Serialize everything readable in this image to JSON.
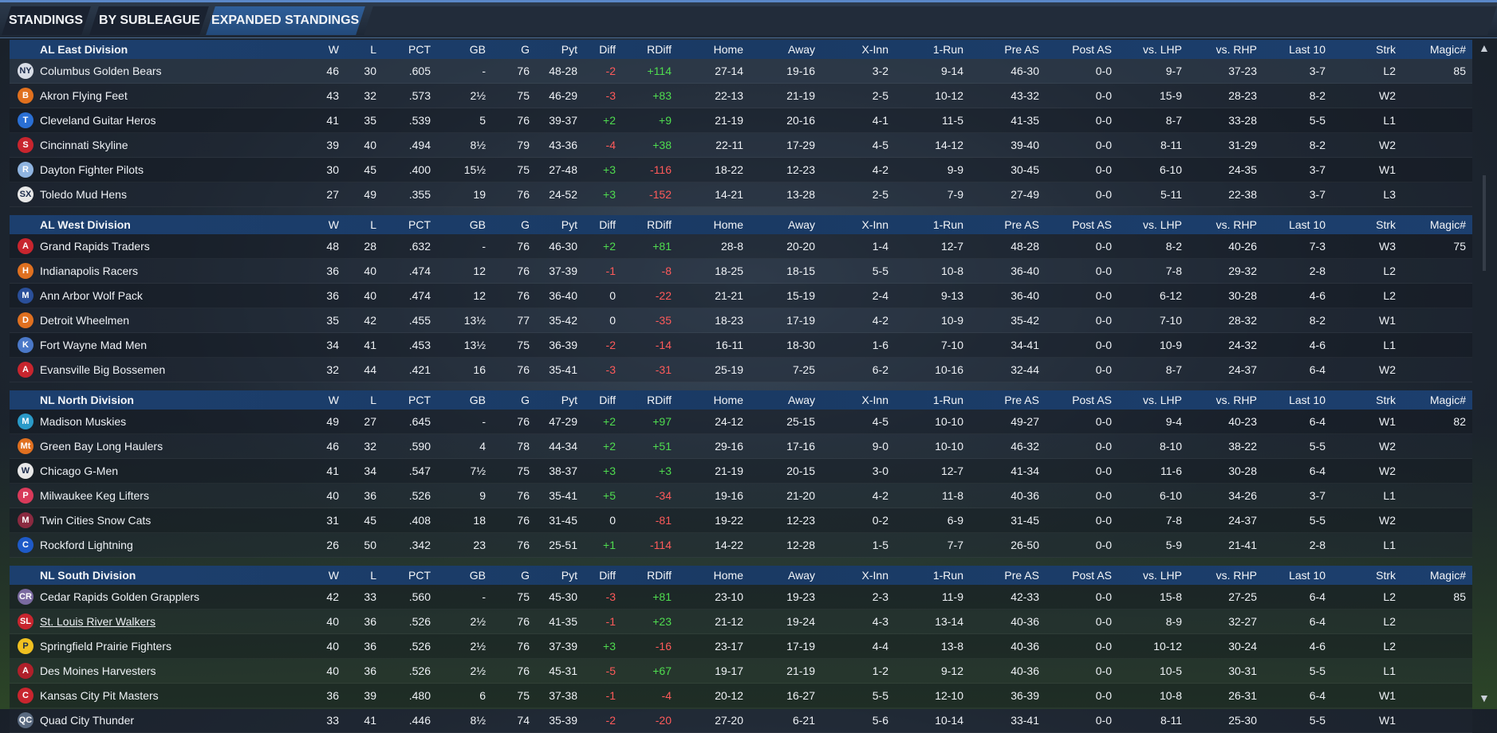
{
  "tabs": [
    {
      "label": "STANDINGS"
    },
    {
      "label": "BY SUBLEAGUE"
    },
    {
      "label": "EXPANDED STANDINGS"
    }
  ],
  "columns": [
    "W",
    "L",
    "PCT",
    "GB",
    "G",
    "Pyt",
    "Diff",
    "RDiff",
    "Home",
    "Away",
    "X-Inn",
    "1-Run",
    "Pre AS",
    "Post AS",
    "vs. LHP",
    "vs. RHP",
    "Last 10",
    "Strk",
    "Magic#"
  ],
  "divisions": [
    {
      "name": "AL East Division",
      "teams": [
        {
          "name": "Columbus Golden Bears",
          "w": "46",
          "l": "30",
          "pct": ".605",
          "gb": "-",
          "g": "76",
          "pyt": "48-28",
          "diff": "-2",
          "rdiff": "+114",
          "home": "27-14",
          "away": "19-16",
          "xinn": "3-2",
          "onerun": "9-14",
          "preas": "46-30",
          "postas": "0-0",
          "lhp": "9-7",
          "rhp": "37-23",
          "last10": "3-7",
          "strk": "L2",
          "magic": "85",
          "logo_color": "#d8dde6",
          "logo_text": "NY"
        },
        {
          "name": "Akron  Flying Feet",
          "w": "43",
          "l": "32",
          "pct": ".573",
          "gb": "2½",
          "g": "75",
          "pyt": "46-29",
          "diff": "-3",
          "rdiff": "+83",
          "home": "22-13",
          "away": "21-19",
          "xinn": "2-5",
          "onerun": "10-12",
          "preas": "43-32",
          "postas": "0-0",
          "lhp": "15-9",
          "rhp": "28-23",
          "last10": "8-2",
          "strk": "W2",
          "magic": "",
          "logo_color": "#e0701e",
          "logo_text": "B"
        },
        {
          "name": "Cleveland Guitar Heros",
          "w": "41",
          "l": "35",
          "pct": ".539",
          "gb": "5",
          "g": "76",
          "pyt": "39-37",
          "diff": "+2",
          "rdiff": "+9",
          "home": "21-19",
          "away": "20-16",
          "xinn": "4-1",
          "onerun": "11-5",
          "preas": "41-35",
          "postas": "0-0",
          "lhp": "8-7",
          "rhp": "33-28",
          "last10": "5-5",
          "strk": "L1",
          "magic": "",
          "logo_color": "#2a6fd4",
          "logo_text": "T"
        },
        {
          "name": "Cincinnati Skyline",
          "w": "39",
          "l": "40",
          "pct": ".494",
          "gb": "8½",
          "g": "79",
          "pyt": "43-36",
          "diff": "-4",
          "rdiff": "+38",
          "home": "22-11",
          "away": "17-29",
          "xinn": "4-5",
          "onerun": "14-12",
          "preas": "39-40",
          "postas": "0-0",
          "lhp": "8-11",
          "rhp": "31-29",
          "last10": "8-2",
          "strk": "W2",
          "magic": "",
          "logo_color": "#c8252e",
          "logo_text": "S"
        },
        {
          "name": "Dayton Fighter Pilots",
          "w": "30",
          "l": "45",
          "pct": ".400",
          "gb": "15½",
          "g": "75",
          "pyt": "27-48",
          "diff": "+3",
          "rdiff": "-116",
          "home": "18-22",
          "away": "12-23",
          "xinn": "4-2",
          "onerun": "9-9",
          "preas": "30-45",
          "postas": "0-0",
          "lhp": "6-10",
          "rhp": "24-35",
          "last10": "3-7",
          "strk": "W1",
          "magic": "",
          "logo_color": "#8fb4e0",
          "logo_text": "R"
        },
        {
          "name": "Toledo  Mud Hens",
          "w": "27",
          "l": "49",
          "pct": ".355",
          "gb": "19",
          "g": "76",
          "pyt": "24-52",
          "diff": "+3",
          "rdiff": "-152",
          "home": "14-21",
          "away": "13-28",
          "xinn": "2-5",
          "onerun": "7-9",
          "preas": "27-49",
          "postas": "0-0",
          "lhp": "5-11",
          "rhp": "22-38",
          "last10": "3-7",
          "strk": "L3",
          "magic": "",
          "logo_color": "#e8e8e8",
          "logo_text": "SX"
        }
      ]
    },
    {
      "name": "AL West Division",
      "teams": [
        {
          "name": "Grand Rapids Traders",
          "w": "48",
          "l": "28",
          "pct": ".632",
          "gb": "-",
          "g": "76",
          "pyt": "46-30",
          "diff": "+2",
          "rdiff": "+81",
          "home": "28-8",
          "away": "20-20",
          "xinn": "1-4",
          "onerun": "12-7",
          "preas": "48-28",
          "postas": "0-0",
          "lhp": "8-2",
          "rhp": "40-26",
          "last10": "7-3",
          "strk": "W3",
          "magic": "75",
          "logo_color": "#c8252e",
          "logo_text": "A"
        },
        {
          "name": "Indianapolis Racers",
          "w": "36",
          "l": "40",
          "pct": ".474",
          "gb": "12",
          "g": "76",
          "pyt": "37-39",
          "diff": "-1",
          "rdiff": "-8",
          "home": "18-25",
          "away": "18-15",
          "xinn": "5-5",
          "onerun": "10-8",
          "preas": "36-40",
          "postas": "0-0",
          "lhp": "7-8",
          "rhp": "29-32",
          "last10": "2-8",
          "strk": "L2",
          "magic": "",
          "logo_color": "#e07020",
          "logo_text": "H"
        },
        {
          "name": "Ann Arbor Wolf Pack",
          "w": "36",
          "l": "40",
          "pct": ".474",
          "gb": "12",
          "g": "76",
          "pyt": "36-40",
          "diff": "0",
          "rdiff": "-22",
          "home": "21-21",
          "away": "15-19",
          "xinn": "2-4",
          "onerun": "9-13",
          "preas": "36-40",
          "postas": "0-0",
          "lhp": "6-12",
          "rhp": "30-28",
          "last10": "4-6",
          "strk": "L2",
          "magic": "",
          "logo_color": "#2a4f9a",
          "logo_text": "M"
        },
        {
          "name": "Detroit Wheelmen",
          "w": "35",
          "l": "42",
          "pct": ".455",
          "gb": "13½",
          "g": "77",
          "pyt": "35-42",
          "diff": "0",
          "rdiff": "-35",
          "home": "18-23",
          "away": "17-19",
          "xinn": "4-2",
          "onerun": "10-9",
          "preas": "35-42",
          "postas": "0-0",
          "lhp": "7-10",
          "rhp": "28-32",
          "last10": "8-2",
          "strk": "W1",
          "magic": "",
          "logo_color": "#e07020",
          "logo_text": "D"
        },
        {
          "name": "Fort Wayne Mad Men",
          "w": "34",
          "l": "41",
          "pct": ".453",
          "gb": "13½",
          "g": "75",
          "pyt": "36-39",
          "diff": "-2",
          "rdiff": "-14",
          "home": "16-11",
          "away": "18-30",
          "xinn": "1-6",
          "onerun": "7-10",
          "preas": "34-41",
          "postas": "0-0",
          "lhp": "10-9",
          "rhp": "24-32",
          "last10": "4-6",
          "strk": "L1",
          "magic": "",
          "logo_color": "#4a78c8",
          "logo_text": "K"
        },
        {
          "name": "Evansville Big Bossemen",
          "w": "32",
          "l": "44",
          "pct": ".421",
          "gb": "16",
          "g": "76",
          "pyt": "35-41",
          "diff": "-3",
          "rdiff": "-31",
          "home": "25-19",
          "away": "7-25",
          "xinn": "6-2",
          "onerun": "10-16",
          "preas": "32-44",
          "postas": "0-0",
          "lhp": "8-7",
          "rhp": "24-37",
          "last10": "6-4",
          "strk": "W2",
          "magic": "",
          "logo_color": "#c8252e",
          "logo_text": "A"
        }
      ]
    },
    {
      "name": "NL North Division",
      "teams": [
        {
          "name": "Madison Muskies",
          "w": "49",
          "l": "27",
          "pct": ".645",
          "gb": "-",
          "g": "76",
          "pyt": "47-29",
          "diff": "+2",
          "rdiff": "+97",
          "home": "24-12",
          "away": "25-15",
          "xinn": "4-5",
          "onerun": "10-10",
          "preas": "49-27",
          "postas": "0-0",
          "lhp": "9-4",
          "rhp": "40-23",
          "last10": "6-4",
          "strk": "W1",
          "magic": "82",
          "logo_color": "#2a9ac8",
          "logo_text": "M"
        },
        {
          "name": "Green Bay  Long Haulers",
          "w": "46",
          "l": "32",
          "pct": ".590",
          "gb": "4",
          "g": "78",
          "pyt": "44-34",
          "diff": "+2",
          "rdiff": "+51",
          "home": "29-16",
          "away": "17-16",
          "xinn": "9-0",
          "onerun": "10-10",
          "preas": "46-32",
          "postas": "0-0",
          "lhp": "8-10",
          "rhp": "38-22",
          "last10": "5-5",
          "strk": "W2",
          "magic": "",
          "logo_color": "#e07020",
          "logo_text": "Mt"
        },
        {
          "name": "Chicago G-Men",
          "w": "41",
          "l": "34",
          "pct": ".547",
          "gb": "7½",
          "g": "75",
          "pyt": "38-37",
          "diff": "+3",
          "rdiff": "+3",
          "home": "21-19",
          "away": "20-15",
          "xinn": "3-0",
          "onerun": "12-7",
          "preas": "41-34",
          "postas": "0-0",
          "lhp": "11-6",
          "rhp": "30-28",
          "last10": "6-4",
          "strk": "W2",
          "magic": "",
          "logo_color": "#e8e8e8",
          "logo_text": "W"
        },
        {
          "name": "Milwaukee Keg Lifters",
          "w": "40",
          "l": "36",
          "pct": ".526",
          "gb": "9",
          "g": "76",
          "pyt": "35-41",
          "diff": "+5",
          "rdiff": "-34",
          "home": "19-16",
          "away": "21-20",
          "xinn": "4-2",
          "onerun": "11-8",
          "preas": "40-36",
          "postas": "0-0",
          "lhp": "6-10",
          "rhp": "34-26",
          "last10": "3-7",
          "strk": "L1",
          "magic": "",
          "logo_color": "#d83a5a",
          "logo_text": "P"
        },
        {
          "name": "Twin Cities Snow Cats",
          "w": "31",
          "l": "45",
          "pct": ".408",
          "gb": "18",
          "g": "76",
          "pyt": "31-45",
          "diff": "0",
          "rdiff": "-81",
          "home": "19-22",
          "away": "12-23",
          "xinn": "0-2",
          "onerun": "6-9",
          "preas": "31-45",
          "postas": "0-0",
          "lhp": "7-8",
          "rhp": "24-37",
          "last10": "5-5",
          "strk": "W2",
          "magic": "",
          "logo_color": "#8a2a40",
          "logo_text": "M"
        },
        {
          "name": "Rockford Lightning",
          "w": "26",
          "l": "50",
          "pct": ".342",
          "gb": "23",
          "g": "76",
          "pyt": "25-51",
          "diff": "+1",
          "rdiff": "-114",
          "home": "14-22",
          "away": "12-28",
          "xinn": "1-5",
          "onerun": "7-7",
          "preas": "26-50",
          "postas": "0-0",
          "lhp": "5-9",
          "rhp": "21-41",
          "last10": "2-8",
          "strk": "L1",
          "magic": "",
          "logo_color": "#1e5ac8",
          "logo_text": "C"
        }
      ]
    },
    {
      "name": "NL South Division",
      "teams": [
        {
          "name": "Cedar Rapids Golden Grapplers",
          "w": "42",
          "l": "33",
          "pct": ".560",
          "gb": "-",
          "g": "75",
          "pyt": "45-30",
          "diff": "-3",
          "rdiff": "+81",
          "home": "23-10",
          "away": "19-23",
          "xinn": "2-3",
          "onerun": "11-9",
          "preas": "42-33",
          "postas": "0-0",
          "lhp": "15-8",
          "rhp": "27-25",
          "last10": "6-4",
          "strk": "L2",
          "magic": "85",
          "logo_color": "#7a6aa0",
          "logo_text": "CR"
        },
        {
          "name": "St. Louis River Walkers",
          "w": "40",
          "l": "36",
          "pct": ".526",
          "gb": "2½",
          "g": "76",
          "pyt": "41-35",
          "diff": "-1",
          "rdiff": "+23",
          "home": "21-12",
          "away": "19-24",
          "xinn": "4-3",
          "onerun": "13-14",
          "preas": "40-36",
          "postas": "0-0",
          "lhp": "8-9",
          "rhp": "32-27",
          "last10": "6-4",
          "strk": "L2",
          "magic": "",
          "logo_color": "#c8252e",
          "logo_text": "SL",
          "link": true
        },
        {
          "name": "Springfield Prairie Fighters",
          "w": "40",
          "l": "36",
          "pct": ".526",
          "gb": "2½",
          "g": "76",
          "pyt": "37-39",
          "diff": "+3",
          "rdiff": "-16",
          "home": "23-17",
          "away": "17-19",
          "xinn": "4-4",
          "onerun": "13-8",
          "preas": "40-36",
          "postas": "0-0",
          "lhp": "10-12",
          "rhp": "30-24",
          "last10": "4-6",
          "strk": "L2",
          "magic": "",
          "logo_color": "#f0c020",
          "logo_text": "P"
        },
        {
          "name": "Des Moines   Harvesters",
          "w": "40",
          "l": "36",
          "pct": ".526",
          "gb": "2½",
          "g": "76",
          "pyt": "45-31",
          "diff": "-5",
          "rdiff": "+67",
          "home": "19-17",
          "away": "21-19",
          "xinn": "1-2",
          "onerun": "9-12",
          "preas": "40-36",
          "postas": "0-0",
          "lhp": "10-5",
          "rhp": "30-31",
          "last10": "5-5",
          "strk": "L1",
          "magic": "",
          "logo_color": "#b0202a",
          "logo_text": "A"
        },
        {
          "name": "Kansas City Pit Masters",
          "w": "36",
          "l": "39",
          "pct": ".480",
          "gb": "6",
          "g": "75",
          "pyt": "37-38",
          "diff": "-1",
          "rdiff": "-4",
          "home": "20-12",
          "away": "16-27",
          "xinn": "5-5",
          "onerun": "12-10",
          "preas": "36-39",
          "postas": "0-0",
          "lhp": "10-8",
          "rhp": "26-31",
          "last10": "6-4",
          "strk": "W1",
          "magic": "",
          "logo_color": "#c8252e",
          "logo_text": "C"
        },
        {
          "name": "Quad City Thunder",
          "w": "33",
          "l": "41",
          "pct": ".446",
          "gb": "8½",
          "g": "74",
          "pyt": "35-39",
          "diff": "-2",
          "rdiff": "-20",
          "home": "27-20",
          "away": "6-21",
          "xinn": "5-6",
          "onerun": "10-14",
          "preas": "33-41",
          "postas": "0-0",
          "lhp": "8-11",
          "rhp": "25-30",
          "last10": "5-5",
          "strk": "W1",
          "magic": "",
          "logo_color": "#5a6a80",
          "logo_text": "QC"
        }
      ]
    }
  ],
  "scroll": {
    "up_icon": "▲",
    "down_icon": "▼"
  }
}
